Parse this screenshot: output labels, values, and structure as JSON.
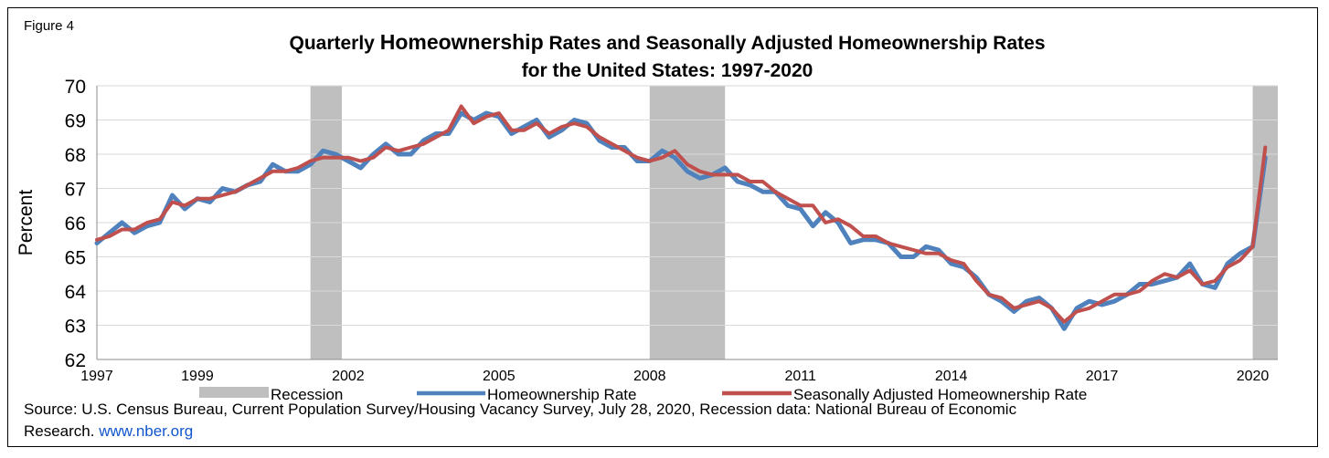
{
  "figure_label": "Figure 4",
  "title_line1_pre": "Quarterly ",
  "title_line1_big": "Homeownership",
  "title_line1_post": " Rates and Seasonally Adjusted Homeownership Rates",
  "title_line2": "for the United States: 1997-2020",
  "source_text": "Source: U.S. Census Bureau, Current Population Survey/Housing Vacancy Survey, July 28, 2020, Recession data: National Bureau of Economic Research.",
  "source_link": "www.nber.org",
  "colors": {
    "recession": "#bfbfbf",
    "homeownership": "#4f81bd",
    "seasonally_adjusted": "#c0504d",
    "grid": "#d9d9d9"
  },
  "chart_data": {
    "type": "line",
    "title": "Quarterly Homeownership Rates and Seasonally Adjusted Homeownership Rates for the United States: 1997-2020",
    "xlabel": "",
    "ylabel": "Percent",
    "ylim": [
      62,
      70
    ],
    "yticks": [
      62,
      63,
      64,
      65,
      66,
      67,
      68,
      69,
      70
    ],
    "xlim": [
      1997.0,
      2020.5
    ],
    "xticks": [
      1997,
      1999,
      2002,
      2005,
      2008,
      2011,
      2014,
      2017,
      2020
    ],
    "grid": "horizontal",
    "legend_position": "bottom",
    "recessions": [
      {
        "label": "Recession",
        "start": 2001.25,
        "end": 2001.875
      },
      {
        "label": "Recession",
        "start": 2008.0,
        "end": 2009.5
      },
      {
        "label": "Recession",
        "start": 2020.0,
        "end": 2020.5
      }
    ],
    "x": [
      1997.0,
      1997.25,
      1997.5,
      1997.75,
      1998.0,
      1998.25,
      1998.5,
      1998.75,
      1999.0,
      1999.25,
      1999.5,
      1999.75,
      2000.0,
      2000.25,
      2000.5,
      2000.75,
      2001.0,
      2001.25,
      2001.5,
      2001.75,
      2002.0,
      2002.25,
      2002.5,
      2002.75,
      2003.0,
      2003.25,
      2003.5,
      2003.75,
      2004.0,
      2004.25,
      2004.5,
      2004.75,
      2005.0,
      2005.25,
      2005.5,
      2005.75,
      2006.0,
      2006.25,
      2006.5,
      2006.75,
      2007.0,
      2007.25,
      2007.5,
      2007.75,
      2008.0,
      2008.25,
      2008.5,
      2008.75,
      2009.0,
      2009.25,
      2009.5,
      2009.75,
      2010.0,
      2010.25,
      2010.5,
      2010.75,
      2011.0,
      2011.25,
      2011.5,
      2011.75,
      2012.0,
      2012.25,
      2012.5,
      2012.75,
      2013.0,
      2013.25,
      2013.5,
      2013.75,
      2014.0,
      2014.25,
      2014.5,
      2014.75,
      2015.0,
      2015.25,
      2015.5,
      2015.75,
      2016.0,
      2016.25,
      2016.5,
      2016.75,
      2017.0,
      2017.25,
      2017.5,
      2017.75,
      2018.0,
      2018.25,
      2018.5,
      2018.75,
      2019.0,
      2019.25,
      2019.5,
      2019.75,
      2020.0,
      2020.25
    ],
    "series": [
      {
        "name": "Homeownership Rate",
        "values": [
          65.4,
          65.7,
          66.0,
          65.7,
          65.9,
          66.0,
          66.8,
          66.4,
          66.7,
          66.6,
          67.0,
          66.9,
          67.1,
          67.2,
          67.7,
          67.5,
          67.5,
          67.7,
          68.1,
          68.0,
          67.8,
          67.6,
          68.0,
          68.3,
          68.0,
          68.0,
          68.4,
          68.6,
          68.6,
          69.2,
          69.0,
          69.2,
          69.1,
          68.6,
          68.8,
          69.0,
          68.5,
          68.7,
          69.0,
          68.9,
          68.4,
          68.2,
          68.2,
          67.8,
          67.8,
          68.1,
          67.9,
          67.5,
          67.3,
          67.4,
          67.6,
          67.2,
          67.1,
          66.9,
          66.9,
          66.5,
          66.4,
          65.9,
          66.3,
          66.0,
          65.4,
          65.5,
          65.5,
          65.4,
          65.0,
          65.0,
          65.3,
          65.2,
          64.8,
          64.7,
          64.4,
          63.9,
          63.7,
          63.4,
          63.7,
          63.8,
          63.5,
          62.9,
          63.5,
          63.7,
          63.6,
          63.7,
          63.9,
          64.2,
          64.2,
          64.3,
          64.4,
          64.8,
          64.2,
          64.1,
          64.8,
          65.1,
          65.3,
          67.9
        ]
      },
      {
        "name": "Seasonally Adjusted Homeownership Rate",
        "values": [
          65.5,
          65.6,
          65.8,
          65.8,
          66.0,
          66.1,
          66.6,
          66.5,
          66.7,
          66.7,
          66.8,
          66.9,
          67.1,
          67.3,
          67.5,
          67.5,
          67.6,
          67.8,
          67.9,
          67.9,
          67.9,
          67.8,
          67.9,
          68.2,
          68.1,
          68.2,
          68.3,
          68.5,
          68.7,
          69.4,
          68.9,
          69.1,
          69.2,
          68.7,
          68.7,
          68.9,
          68.6,
          68.8,
          68.9,
          68.8,
          68.5,
          68.3,
          68.1,
          67.9,
          67.8,
          67.9,
          68.1,
          67.7,
          67.5,
          67.4,
          67.4,
          67.4,
          67.2,
          67.2,
          66.9,
          66.7,
          66.5,
          66.5,
          66.0,
          66.1,
          65.9,
          65.6,
          65.6,
          65.4,
          65.3,
          65.2,
          65.1,
          65.1,
          64.9,
          64.8,
          64.3,
          63.9,
          63.8,
          63.5,
          63.6,
          63.7,
          63.5,
          63.1,
          63.4,
          63.5,
          63.7,
          63.9,
          63.9,
          64.0,
          64.3,
          64.5,
          64.4,
          64.6,
          64.2,
          64.3,
          64.7,
          64.9,
          65.3,
          68.2
        ]
      }
    ],
    "legend": [
      "Recession",
      "Homeownership Rate",
      "Seasonally Adjusted Homeownership Rate"
    ]
  }
}
